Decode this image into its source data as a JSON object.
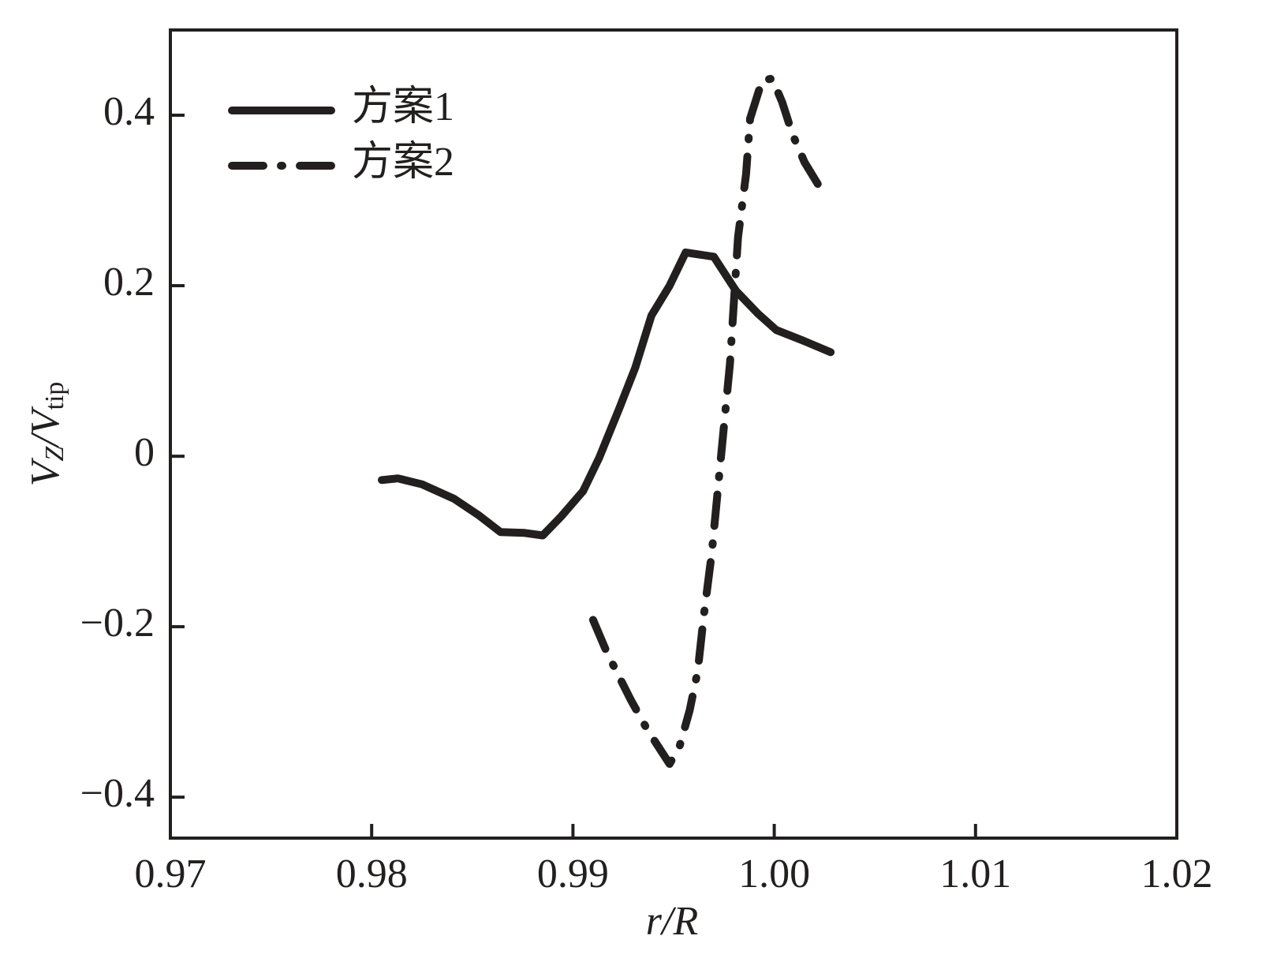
{
  "chart_data": {
    "type": "line",
    "x_label": "r/R",
    "y_label": [
      "V",
      "Z",
      "/V",
      "tip"
    ],
    "xlim": [
      0.97,
      1.02
    ],
    "xticks": [
      0.97,
      0.98,
      0.99,
      {
        "value": 1.0,
        "label": "1.00"
      },
      1.01,
      1.02
    ],
    "ylim": [
      -0.448,
      0.5
    ],
    "yticks": [
      {
        "value": -0.4,
        "label": "−0.4"
      },
      {
        "value": -0.2,
        "label": "−0.2"
      },
      0,
      0.2,
      0.4
    ],
    "grid": false,
    "legend": "upper-left",
    "series": [
      {
        "name": "方案1",
        "color": "#231f1f",
        "style": "solid",
        "x": [
          0.9805,
          0.9813,
          0.9825,
          0.9841,
          0.9853,
          0.9864,
          0.9876,
          0.9885,
          0.9894,
          0.9905,
          0.9913,
          0.9923,
          0.9931,
          0.9939,
          0.9948,
          0.9956,
          0.997,
          0.9981,
          0.9992,
          1.0001,
          1.0015,
          1.0028
        ],
        "values": [
          -0.028,
          -0.026,
          -0.033,
          -0.05,
          -0.069,
          -0.089,
          -0.09,
          -0.093,
          -0.071,
          -0.041,
          -0.002,
          0.056,
          0.104,
          0.165,
          0.2,
          0.239,
          0.234,
          0.194,
          0.167,
          0.148,
          0.135,
          0.122
        ]
      },
      {
        "name": "方案2",
        "color": "#231f1f",
        "style": "dashdot",
        "x": [
          0.991,
          0.9917,
          0.9929,
          0.9937,
          0.9948,
          0.9953,
          0.9958,
          0.9962,
          0.9965,
          0.9969,
          0.9972,
          0.9975,
          0.9978,
          0.998,
          0.9982,
          0.9986,
          0.9988,
          0.9994,
          0.9999,
          1.0004,
          1.0009,
          1.0015,
          1.0022
        ],
        "values": [
          -0.192,
          -0.231,
          -0.287,
          -0.321,
          -0.361,
          -0.34,
          -0.298,
          -0.252,
          -0.187,
          -0.113,
          -0.039,
          0.035,
          0.109,
          0.183,
          0.257,
          0.331,
          0.396,
          0.441,
          0.443,
          0.415,
          0.378,
          0.345,
          0.318
        ]
      }
    ]
  }
}
